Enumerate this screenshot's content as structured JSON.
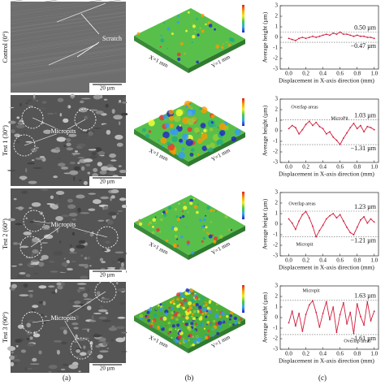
{
  "panels": {
    "a": "(a)",
    "b": "(b)",
    "c": "(c)"
  },
  "rows": [
    {
      "label": "Control (0°)",
      "sem_note": "Scratch",
      "scale_bar": "20 µm",
      "x_size": "X=1 mm",
      "y_size": "Y=1 mm"
    },
    {
      "label": "Test 1 (30°)",
      "sem_note": "Micropits",
      "scale_bar": "20 µm",
      "x_size": "X=1 mm",
      "y_size": "Y=1 mm"
    },
    {
      "label": "Test 2 (60°)",
      "sem_note": "Micropits",
      "scale_bar": "20 µm",
      "x_size": "X=1 mm",
      "y_size": "Y=1 mm"
    },
    {
      "label": "Test 3 (90°)",
      "sem_note": "Micropits",
      "scale_bar": "20 µm",
      "x_size": "X=1 mm",
      "y_size": "Y=1 mm"
    }
  ],
  "chart_data": [
    {
      "type": "line",
      "xlabel": "Displacement in X-axis direction (mm)",
      "ylabel": "Average height (µm)",
      "x": [
        0,
        0.04,
        0.08,
        0.12,
        0.16,
        0.2,
        0.24,
        0.28,
        0.32,
        0.36,
        0.4,
        0.44,
        0.48,
        0.52,
        0.56,
        0.6,
        0.64,
        0.68,
        0.72,
        0.76,
        0.8,
        0.84,
        0.88,
        0.92,
        0.96,
        1.0
      ],
      "series": [
        {
          "color": "#d01c3a",
          "values": [
            -0.1,
            -0.2,
            -0.3,
            -0.1,
            0,
            -0.1,
            0,
            0.1,
            0,
            0.1,
            0.2,
            0.3,
            0.2,
            0.4,
            0.3,
            0.5,
            0.3,
            0.3,
            0.2,
            0.1,
            0.2,
            0.1,
            0.1,
            0,
            0,
            -0.1
          ]
        }
      ],
      "xlim": [
        -0.1,
        1.05
      ],
      "ylim": [
        -3,
        3
      ],
      "yticks": [
        -3,
        -2,
        -1,
        0,
        1,
        2,
        3
      ],
      "xticks": [
        {
          "value": 0,
          "label": "0.0"
        },
        {
          "value": 0.2,
          "label": "0.2"
        },
        {
          "value": 0.4,
          "label": "0.4"
        },
        {
          "value": 0.6,
          "label": "0.6"
        },
        {
          "value": 0.8,
          "label": "0.8"
        },
        {
          "value": 1.0,
          "label": "1.0"
        }
      ],
      "reference_lines": [
        {
          "value": 0.5,
          "label": "0.50 µm"
        },
        {
          "value": -0.47,
          "label": "−0.47 µm"
        }
      ],
      "annotations": []
    },
    {
      "type": "line",
      "xlabel": "Displacement in X-axis direction (mm)",
      "ylabel": "Average height (µm)",
      "x": [
        0,
        0.04,
        0.08,
        0.12,
        0.16,
        0.2,
        0.24,
        0.28,
        0.32,
        0.36,
        0.4,
        0.44,
        0.48,
        0.52,
        0.56,
        0.6,
        0.64,
        0.68,
        0.72,
        0.76,
        0.8,
        0.84,
        0.88,
        0.92,
        0.96,
        1.0
      ],
      "series": [
        {
          "color": "#d01c3a",
          "values": [
            0.2,
            0.5,
            0.3,
            -0.3,
            0.1,
            0.6,
            0.9,
            0.5,
            0.8,
            0.4,
            0.2,
            -0.3,
            -0.1,
            -0.6,
            -0.9,
            -1.3,
            -0.7,
            -0.2,
            0.3,
            0.7,
            0.2,
            0.5,
            -0.1,
            0.4,
            0.3,
            0.1
          ]
        }
      ],
      "xlim": [
        -0.1,
        1.05
      ],
      "ylim": [
        -3,
        3
      ],
      "yticks": [
        -3,
        -2,
        -1,
        0,
        1,
        2,
        3
      ],
      "xticks": [
        {
          "value": 0,
          "label": "0.0"
        },
        {
          "value": 0.2,
          "label": "0.2"
        },
        {
          "value": 0.4,
          "label": "0.4"
        },
        {
          "value": 0.6,
          "label": "0.6"
        },
        {
          "value": 0.8,
          "label": "0.8"
        },
        {
          "value": 1.0,
          "label": "1.0"
        }
      ],
      "reference_lines": [
        {
          "value": 1.03,
          "label": "1.03 µm"
        },
        {
          "value": -1.31,
          "label": "−1.31 µm"
        }
      ],
      "annotations": [
        "Overlap areas",
        "MicroPit"
      ]
    },
    {
      "type": "line",
      "xlabel": "Displacement in X-axis direction (mm)",
      "ylabel": "Average height (µm)",
      "x": [
        0,
        0.04,
        0.08,
        0.12,
        0.16,
        0.2,
        0.24,
        0.28,
        0.32,
        0.36,
        0.4,
        0.44,
        0.48,
        0.52,
        0.56,
        0.6,
        0.64,
        0.68,
        0.72,
        0.76,
        0.8,
        0.84,
        0.88,
        0.92,
        0.96,
        1.0
      ],
      "series": [
        {
          "color": "#d01c3a",
          "values": [
            0.5,
            0.1,
            -0.5,
            0.3,
            0.9,
            1.2,
            0.6,
            -0.2,
            -1.2,
            -0.6,
            -0.1,
            0.5,
            0.8,
            1.0,
            0.6,
            0.9,
            0.3,
            -0.3,
            -0.8,
            -1.0,
            -0.3,
            0.4,
            0.7,
            0.1,
            0.5,
            0.2
          ]
        }
      ],
      "xlim": [
        -0.1,
        1.05
      ],
      "ylim": [
        -3,
        3
      ],
      "yticks": [
        -3,
        -2,
        -1,
        0,
        1,
        2,
        3
      ],
      "xticks": [
        {
          "value": 0,
          "label": "0.0"
        },
        {
          "value": 0.2,
          "label": "0.2"
        },
        {
          "value": 0.4,
          "label": "0.4"
        },
        {
          "value": 0.6,
          "label": "0.6"
        },
        {
          "value": 0.8,
          "label": "0.8"
        },
        {
          "value": 1.0,
          "label": "1.0"
        }
      ],
      "reference_lines": [
        {
          "value": 1.23,
          "label": "1.23 µm"
        },
        {
          "value": -1.21,
          "label": "−1.21 µm"
        }
      ],
      "annotations": [
        "Overlap areas",
        "Micropit"
      ]
    },
    {
      "type": "line",
      "xlabel": "Displacement in X-axis direction (mm)",
      "ylabel": "Average height (µm)",
      "x": [
        0,
        0.04,
        0.08,
        0.12,
        0.16,
        0.2,
        0.24,
        0.28,
        0.32,
        0.36,
        0.4,
        0.44,
        0.48,
        0.52,
        0.56,
        0.6,
        0.64,
        0.68,
        0.72,
        0.76,
        0.8,
        0.84,
        0.88,
        0.92,
        0.96,
        1.0
      ],
      "series": [
        {
          "color": "#d01c3a",
          "values": [
            -0.5,
            0.6,
            -0.8,
            0.4,
            -1.3,
            0.3,
            1.2,
            1.6,
            0.5,
            -0.9,
            0.4,
            1.5,
            -0.2,
            1.0,
            -1.4,
            0.3,
            1.4,
            -0.6,
            0.5,
            -1.5,
            1.3,
            0.1,
            -0.7,
            1.5,
            -0.3,
            0.6
          ]
        }
      ],
      "xlim": [
        -0.1,
        1.05
      ],
      "ylim": [
        -3,
        3
      ],
      "yticks": [
        -3,
        -2,
        -1,
        0,
        1,
        2,
        3
      ],
      "xticks": [
        {
          "value": 0,
          "label": "0.0"
        },
        {
          "value": 0.2,
          "label": "0.2"
        },
        {
          "value": 0.4,
          "label": "0.4"
        },
        {
          "value": 0.6,
          "label": "0.6"
        },
        {
          "value": 0.8,
          "label": "0.8"
        },
        {
          "value": 1.0,
          "label": "1.0"
        }
      ],
      "reference_lines": [
        {
          "value": 1.63,
          "label": "1.63 µm"
        },
        {
          "value": -1.61,
          "label": "−1.61 µm"
        }
      ],
      "annotations": [
        "Micropit",
        "Overlap areas"
      ]
    }
  ]
}
